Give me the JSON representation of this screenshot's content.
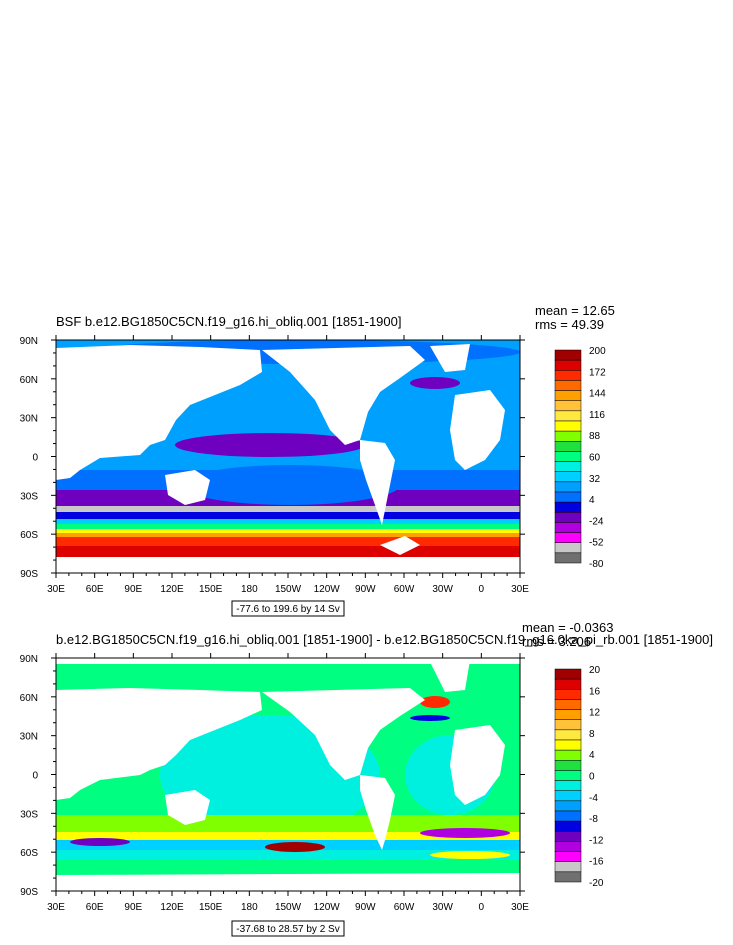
{
  "chart_data": [
    {
      "type": "heatmap",
      "title": "BSF b.e12.BG1850C5CN.f19_g16.hi_obliq.001 [1851-1900]",
      "stats": {
        "mean": "mean = 12.65",
        "rms": "rms = 49.39"
      },
      "x_ticks": [
        "30E",
        "60E",
        "90E",
        "120E",
        "150E",
        "180",
        "150W",
        "120W",
        "90W",
        "60W",
        "30W",
        "0",
        "30E"
      ],
      "y_ticks": [
        "90N",
        "60N",
        "30N",
        "0",
        "30S",
        "60S",
        "90S"
      ],
      "xlim": [
        30,
        390
      ],
      "ylim": [
        -90,
        90
      ],
      "range_label": "-77.6 to 199.6 by 14 Sv",
      "colorbar": {
        "labels": [
          "200",
          "172",
          "144",
          "116",
          "88",
          "60",
          "32",
          "4",
          "-24",
          "-52",
          "-80"
        ],
        "colors": [
          "#a00000",
          "#dc0000",
          "#ff2a00",
          "#ff6a00",
          "#ffa000",
          "#ffc23a",
          "#ffe840",
          "#ffff00",
          "#80ff00",
          "#20e040",
          "#00ff80",
          "#00f0e0",
          "#00d0ff",
          "#00a0ff",
          "#0070ff",
          "#0000e0",
          "#7000c0",
          "#b000e0",
          "#ff00ff",
          "#c8c8c8",
          "#707070"
        ]
      }
    },
    {
      "type": "heatmap",
      "title": "b.e12.BG1850C5CN.f19_g16.hi_obliq.001 [1851-1900] - b.e12.BG1850C5CN.f19_g16.0ka_pi_rb.001 [1851-1900]",
      "stats": {
        "mean": "mean = -0.0363",
        "rms": "rms = 3.206"
      },
      "x_ticks": [
        "30E",
        "60E",
        "90E",
        "120E",
        "150E",
        "180",
        "150W",
        "120W",
        "90W",
        "60W",
        "30W",
        "0",
        "30E"
      ],
      "y_ticks": [
        "90N",
        "60N",
        "30N",
        "0",
        "30S",
        "60S",
        "90S"
      ],
      "xlim": [
        30,
        390
      ],
      "ylim": [
        -90,
        90
      ],
      "range_label": "-37.68 to 28.57 by 2 Sv",
      "colorbar": {
        "labels": [
          "20",
          "16",
          "12",
          "8",
          "4",
          "0",
          "-4",
          "-8",
          "-12",
          "-16",
          "-20"
        ],
        "colors": [
          "#a00000",
          "#dc0000",
          "#ff2a00",
          "#ff6a00",
          "#ffa000",
          "#ffc23a",
          "#ffe840",
          "#ffff00",
          "#80ff00",
          "#20e040",
          "#00ff80",
          "#00f0e0",
          "#00d0ff",
          "#00a0ff",
          "#0070ff",
          "#0000e0",
          "#7000c0",
          "#b000e0",
          "#ff00ff",
          "#c8c8c8",
          "#707070"
        ]
      }
    }
  ]
}
